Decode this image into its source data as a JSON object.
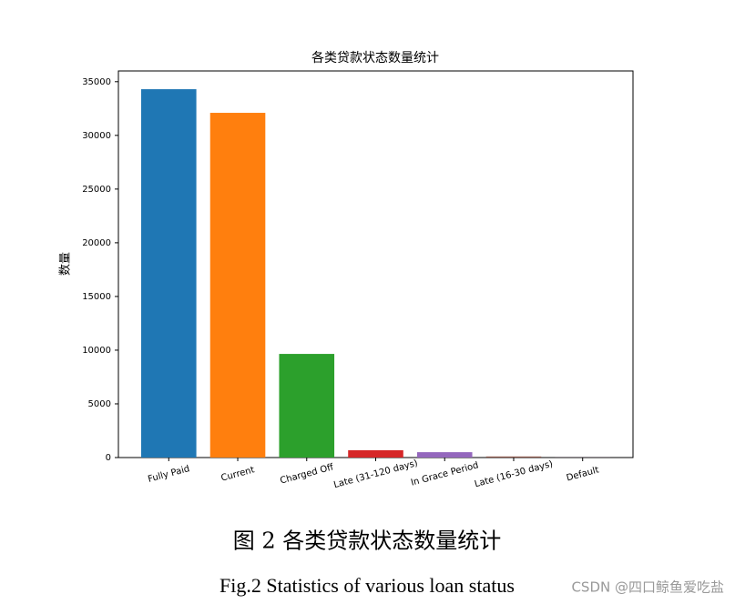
{
  "chart_data": {
    "type": "bar",
    "title": "各类贷款状态数量统计",
    "y_label": "数量",
    "categories": [
      "Fully Paid",
      "Current",
      "Charged Off",
      "Late (31-120 days)",
      "In Grace Period",
      "Late (16-30 days)",
      "Default"
    ],
    "values": [
      34300,
      32100,
      9650,
      680,
      500,
      100,
      5
    ],
    "colors": [
      "#1f77b4",
      "#ff7f0e",
      "#2ca02c",
      "#d62728",
      "#9467bd",
      "#8c564b",
      "#e377c2"
    ],
    "ylim": [
      0,
      36000
    ],
    "yticks": [
      0,
      5000,
      10000,
      15000,
      20000,
      25000,
      30000,
      35000
    ],
    "grid": false
  },
  "caption_cn": "图 2 各类贷款状态数量统计",
  "caption_en": "Fig.2 Statistics of various loan status",
  "watermark": "CSDN @四口鲸鱼爱吃盐"
}
